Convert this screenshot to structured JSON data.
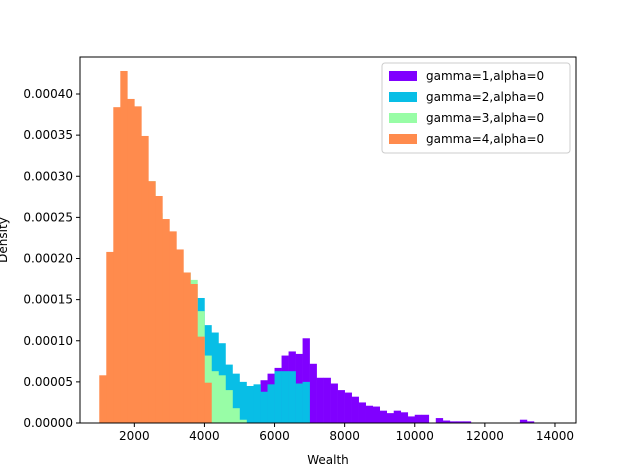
{
  "chart_data": {
    "type": "bar",
    "subtype": "overlaid-histogram",
    "xlabel": "Wealth",
    "ylabel": "Density",
    "xlim": [
      450,
      14600
    ],
    "ylim": [
      0,
      0.000445
    ],
    "xticks": [
      2000,
      4000,
      6000,
      8000,
      10000,
      12000,
      14000
    ],
    "yticks": [
      0,
      5e-05,
      0.0001,
      0.00015,
      0.0002,
      0.00025,
      0.0003,
      0.00035,
      0.0004
    ],
    "yticklabels": [
      "0.00000",
      "0.00005",
      "0.00010",
      "0.00015",
      "0.00020",
      "0.00025",
      "0.00030",
      "0.00035",
      "0.00040"
    ],
    "legend_position": "top-right",
    "series": [
      {
        "name": "gamma=1,alpha=0",
        "color": "#8000ff",
        "bin_width": 200,
        "bins_start": [
          4400,
          4600,
          4800,
          5000,
          5200,
          5400,
          5600,
          5800,
          6000,
          6200,
          6400,
          6600,
          6800,
          7000,
          7200,
          7400,
          7600,
          7800,
          8000,
          8200,
          8400,
          8600,
          8800,
          9000,
          9200,
          9400,
          9600,
          9800,
          10000,
          10200,
          10600,
          10800,
          11000,
          11200,
          11400,
          13000,
          13200
        ],
        "values": [
          5e-06,
          1.2e-05,
          2.2e-05,
          3e-05,
          4e-05,
          4.1e-05,
          5.2e-05,
          6e-05,
          6.7e-05,
          8.2e-05,
          8.7e-05,
          8.4e-05,
          0.000103,
          7.2e-05,
          5.5e-05,
          5.5e-05,
          4.8e-05,
          4e-05,
          3.7e-05,
          3.2e-05,
          2.5e-05,
          2.1e-05,
          2e-05,
          1.5e-05,
          1.2e-05,
          1.5e-05,
          1.3e-05,
          8e-06,
          1e-05,
          1e-05,
          6e-06,
          3e-06,
          2e-06,
          2e-06,
          2e-06,
          4e-06,
          2e-06
        ]
      },
      {
        "name": "gamma=2,alpha=0",
        "color": "#08bee6",
        "bin_width": 200,
        "bins_start": [
          1600,
          1800,
          2000,
          2200,
          2400,
          2600,
          2800,
          3000,
          3200,
          3400,
          3600,
          3800,
          4000,
          4200,
          4400,
          4600,
          4800,
          5000,
          5200,
          5400,
          5600,
          5800,
          6000,
          6200,
          6400,
          6600,
          6800
        ],
        "values": [
          2e-06,
          4e-06,
          6e-06,
          1.2e-05,
          2e-05,
          4.8e-05,
          7.8e-05,
          9.5e-05,
          0.00011,
          0.000134,
          0.000145,
          0.000152,
          0.000119,
          0.00011,
          9.7e-05,
          7.1e-05,
          6e-05,
          5e-05,
          4.5e-05,
          4.7e-05,
          3.8e-05,
          4.7e-05,
          6.3e-05,
          6.3e-05,
          6.3e-05,
          4.8e-05,
          5e-05
        ]
      },
      {
        "name": "gamma=3,alpha=0",
        "color": "#98fda6",
        "bin_width": 200,
        "bins_start": [
          1200,
          1400,
          1600,
          1800,
          2000,
          2200,
          2400,
          2600,
          2800,
          3000,
          3200,
          3400,
          3600,
          3800,
          4000,
          4200,
          4400,
          4600,
          4800,
          5000
        ],
        "values": [
          6e-06,
          5.6e-05,
          0.000141,
          0.000203,
          0.000235,
          0.000244,
          0.000294,
          0.000255,
          0.00021,
          0.000201,
          0.000183,
          0.000183,
          0.000174,
          0.000136,
          8.2e-05,
          6.3e-05,
          5.8e-05,
          4e-05,
          1.8e-05,
          4e-06
        ]
      },
      {
        "name": "gamma=4,alpha=0",
        "color": "#ff8b4d",
        "bin_width": 200,
        "bins_start": [
          1000,
          1200,
          1400,
          1600,
          1800,
          2000,
          2200,
          2400,
          2600,
          2800,
          3000,
          3200,
          3400,
          3600,
          3800,
          4000
        ],
        "values": [
          5.8e-05,
          0.000208,
          0.000384,
          0.000428,
          0.000394,
          0.000385,
          0.000349,
          0.000294,
          0.000276,
          0.000248,
          0.000233,
          0.000211,
          0.000183,
          0.000169,
          0.000105,
          4.9e-05
        ]
      }
    ]
  }
}
